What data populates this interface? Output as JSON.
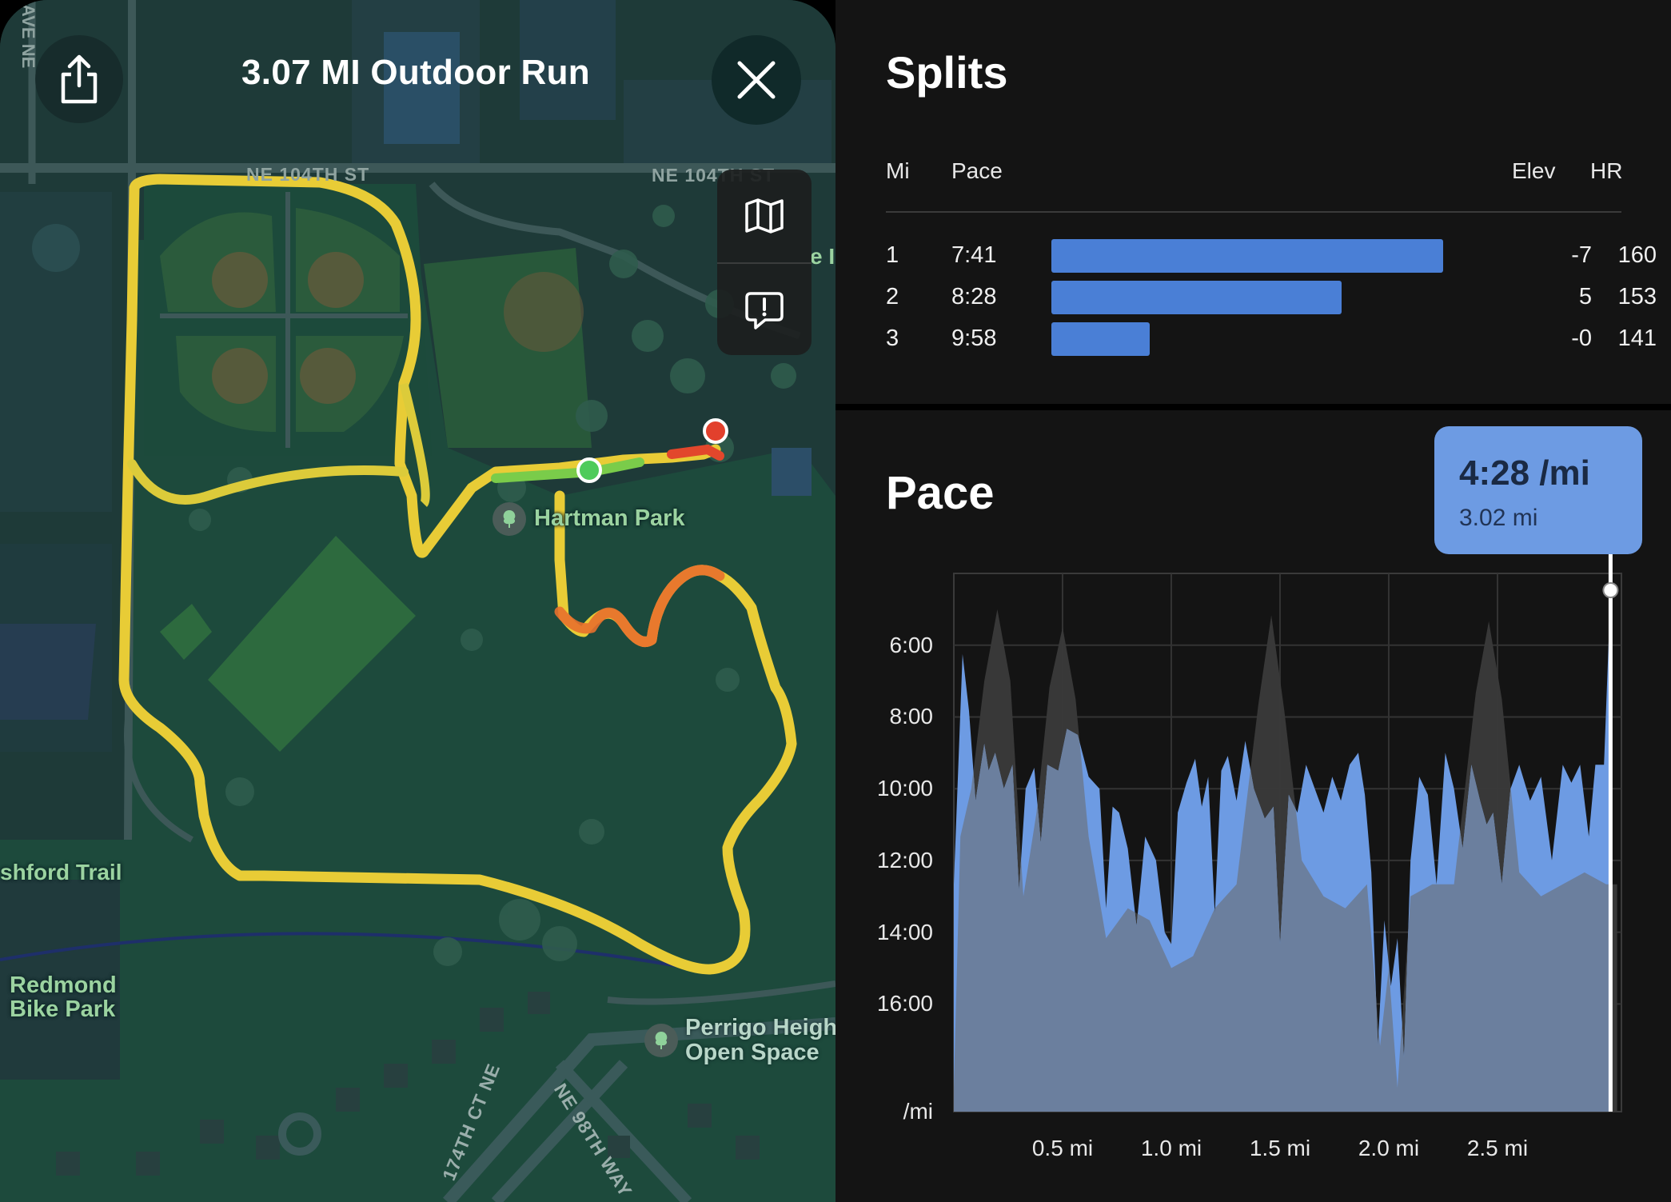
{
  "map": {
    "title": "3.07 MI Outdoor Run",
    "labels": {
      "street_104th_left": "NE 104TH ST",
      "street_104th_right": "NE 104TH ST",
      "ave_left": "AVE NE",
      "hartman_park": "Hartman Park",
      "ashford_trail": "shford Trail",
      "redmond_bike_park_1": "Redmond",
      "redmond_bike_park_2": "Bike Park",
      "perrigo_1": "Perrigo Heigh",
      "perrigo_2": "Open Space",
      "street_174th": "174TH CT NE",
      "street_98th": "NE 98TH WAY",
      "edge_letters": "e I"
    },
    "icons": {
      "share": "share-icon",
      "close": "close-icon",
      "map_mode": "map-icon",
      "feedback": "feedback-icon"
    }
  },
  "splits": {
    "title": "Splits",
    "headers": {
      "mi": "Mi",
      "pace": "Pace",
      "elev": "Elev",
      "hr": "HR"
    },
    "rows": [
      {
        "mi": "1",
        "pace": "7:41",
        "elev": "-7",
        "hr": "160",
        "bar_fraction": 1.0
      },
      {
        "mi": "2",
        "pace": "8:28",
        "elev": "5",
        "hr": "153",
        "bar_fraction": 0.74
      },
      {
        "mi": "3",
        "pace": "9:58",
        "elev": "-0",
        "hr": "141",
        "bar_fraction": 0.25
      }
    ],
    "bar_color": "#4a7fd6"
  },
  "pace": {
    "title": "Pace",
    "tooltip": {
      "value": "4:28 /mi",
      "distance": "3.02 mi"
    },
    "chart_data": {
      "type": "area",
      "x_max_mi": 3.07,
      "y_reversed": true,
      "y_range_sec_per_mi": [
        240,
        1140
      ],
      "y_ticks": [
        {
          "label": "6:00",
          "sec": 360
        },
        {
          "label": "8:00",
          "sec": 480
        },
        {
          "label": "10:00",
          "sec": 600
        },
        {
          "label": "12:00",
          "sec": 720
        },
        {
          "label": "14:00",
          "sec": 840
        },
        {
          "label": "16:00",
          "sec": 960
        }
      ],
      "y_unit": "/mi",
      "x_ticks": [
        {
          "label": "0.5 mi",
          "mi": 0.5
        },
        {
          "label": "1.0 mi",
          "mi": 1.0
        },
        {
          "label": "1.5 mi",
          "mi": 1.5
        },
        {
          "label": "2.0 mi",
          "mi": 2.0
        },
        {
          "label": "2.5 mi",
          "mi": 2.5
        }
      ],
      "cursor_mi": 3.02,
      "series": [
        {
          "color": "#6d9be3",
          "points": [
            [
              0.0,
              760
            ],
            [
              0.04,
              375
            ],
            [
              0.07,
              470
            ],
            [
              0.1,
              620
            ],
            [
              0.14,
              525
            ],
            [
              0.16,
              570
            ],
            [
              0.19,
              540
            ],
            [
              0.23,
              600
            ],
            [
              0.27,
              560
            ],
            [
              0.3,
              770
            ],
            [
              0.33,
              600
            ],
            [
              0.37,
              565
            ],
            [
              0.4,
              690
            ],
            [
              0.43,
              560
            ],
            [
              0.48,
              570
            ],
            [
              0.52,
              500
            ],
            [
              0.57,
              510
            ],
            [
              0.62,
              580
            ],
            [
              0.67,
              600
            ],
            [
              0.7,
              800
            ],
            [
              0.73,
              630
            ],
            [
              0.76,
              640
            ],
            [
              0.8,
              700
            ],
            [
              0.84,
              830
            ],
            [
              0.88,
              680
            ],
            [
              0.93,
              720
            ],
            [
              0.97,
              840
            ],
            [
              1.0,
              860
            ],
            [
              1.03,
              640
            ],
            [
              1.07,
              590
            ],
            [
              1.11,
              550
            ],
            [
              1.14,
              630
            ],
            [
              1.17,
              580
            ],
            [
              1.2,
              810
            ],
            [
              1.23,
              570
            ],
            [
              1.26,
              545
            ],
            [
              1.3,
              620
            ],
            [
              1.34,
              520
            ],
            [
              1.38,
              600
            ],
            [
              1.43,
              650
            ],
            [
              1.47,
              630
            ],
            [
              1.5,
              860
            ],
            [
              1.54,
              610
            ],
            [
              1.58,
              640
            ],
            [
              1.62,
              560
            ],
            [
              1.66,
              600
            ],
            [
              1.7,
              640
            ],
            [
              1.74,
              580
            ],
            [
              1.78,
              620
            ],
            [
              1.82,
              560
            ],
            [
              1.86,
              540
            ],
            [
              1.89,
              610
            ],
            [
              1.92,
              740
            ],
            [
              1.95,
              1030
            ],
            [
              1.98,
              820
            ],
            [
              2.01,
              930
            ],
            [
              2.04,
              850
            ],
            [
              2.07,
              1050
            ],
            [
              2.1,
              720
            ],
            [
              2.14,
              580
            ],
            [
              2.18,
              610
            ],
            [
              2.22,
              760
            ],
            [
              2.26,
              540
            ],
            [
              2.3,
              600
            ],
            [
              2.34,
              700
            ],
            [
              2.38,
              560
            ],
            [
              2.42,
              620
            ],
            [
              2.45,
              660
            ],
            [
              2.48,
              640
            ],
            [
              2.52,
              760
            ],
            [
              2.56,
              600
            ],
            [
              2.6,
              560
            ],
            [
              2.65,
              620
            ],
            [
              2.7,
              580
            ],
            [
              2.75,
              720
            ],
            [
              2.8,
              560
            ],
            [
              2.84,
              590
            ],
            [
              2.88,
              560
            ],
            [
              2.92,
              680
            ],
            [
              2.95,
              560
            ],
            [
              2.99,
              560
            ],
            [
              3.02,
              268
            ]
          ]
        },
        {
          "color": "#3a3a3a",
          "points": [
            [
              0.0,
              1100
            ],
            [
              0.03,
              680
            ],
            [
              0.08,
              600
            ],
            [
              0.14,
              420
            ],
            [
              0.2,
              300
            ],
            [
              0.26,
              420
            ],
            [
              0.32,
              780
            ],
            [
              0.38,
              640
            ],
            [
              0.44,
              430
            ],
            [
              0.5,
              330
            ],
            [
              0.56,
              450
            ],
            [
              0.62,
              680
            ],
            [
              0.7,
              850
            ],
            [
              0.8,
              800
            ],
            [
              0.9,
              820
            ],
            [
              1.0,
              900
            ],
            [
              1.1,
              880
            ],
            [
              1.2,
              800
            ],
            [
              1.3,
              760
            ],
            [
              1.4,
              460
            ],
            [
              1.46,
              310
            ],
            [
              1.52,
              470
            ],
            [
              1.6,
              720
            ],
            [
              1.7,
              780
            ],
            [
              1.8,
              800
            ],
            [
              1.9,
              760
            ],
            [
              1.96,
              1030
            ],
            [
              2.0,
              900
            ],
            [
              2.04,
              1100
            ],
            [
              2.1,
              780
            ],
            [
              2.2,
              760
            ],
            [
              2.3,
              760
            ],
            [
              2.4,
              440
            ],
            [
              2.46,
              320
            ],
            [
              2.52,
              450
            ],
            [
              2.6,
              740
            ],
            [
              2.7,
              780
            ],
            [
              2.8,
              760
            ],
            [
              2.9,
              740
            ],
            [
              3.0,
              760
            ],
            [
              3.05,
              760
            ]
          ]
        }
      ]
    }
  }
}
